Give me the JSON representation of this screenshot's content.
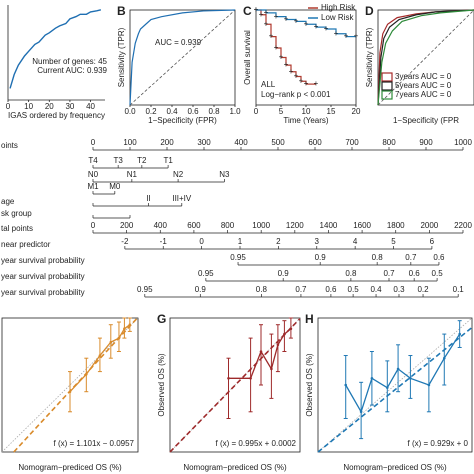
{
  "chart_data": [
    {
      "type": "line",
      "xlabel": "IGAS ordered by frequency",
      "x": [
        1,
        3,
        5,
        8,
        10,
        13,
        15,
        18,
        20,
        23,
        25,
        28,
        30,
        33,
        35,
        38,
        40,
        43,
        45
      ],
      "values": [
        0.6,
        0.66,
        0.7,
        0.74,
        0.76,
        0.79,
        0.8,
        0.83,
        0.84,
        0.86,
        0.87,
        0.88,
        0.9,
        0.91,
        0.92,
        0.92,
        0.93,
        0.935,
        0.939
      ],
      "color": "#1f6fb2",
      "xlim": [
        0,
        47
      ],
      "ylim": [
        0.55,
        0.96
      ],
      "xticks": [
        0,
        10,
        20,
        30,
        40
      ],
      "annotations": [
        "Number of genes: 45",
        "Current AUC: 0.939"
      ],
      "annotation_color": "#b03a2e"
    },
    {
      "type": "roc",
      "label": "B",
      "xlabel": "1−Specificity (FPR)",
      "ylabel": "Sensitivity (TPR)",
      "x": [
        0,
        0.02,
        0.05,
        0.08,
        0.1,
        0.15,
        0.2,
        0.3,
        0.5,
        0.7,
        1
      ],
      "values": [
        0,
        0.45,
        0.65,
        0.75,
        0.8,
        0.85,
        0.9,
        0.93,
        0.97,
        0.99,
        1
      ],
      "color": "#1f6fb2",
      "xlim": [
        0,
        1
      ],
      "ylim": [
        0,
        1
      ],
      "xticks": [
        {
          "value": 0,
          "label": "0.0"
        },
        0.2,
        0.4,
        0.6,
        0.8,
        {
          "value": 1,
          "label": "1.0"
        }
      ],
      "annotations": [
        "AUC = 0.939"
      ]
    },
    {
      "type": "km",
      "label": "C",
      "xlabel": "Time (Years)",
      "ylabel": "Overall survival",
      "xlim": [
        0,
        20
      ],
      "ylim": [
        0,
        1
      ],
      "xticks": [
        0,
        5,
        10,
        15,
        20
      ],
      "series": [
        {
          "name": "High Risk",
          "color": "#b03a2e",
          "x": [
            0,
            1,
            2,
            3,
            4,
            5,
            6,
            7,
            8,
            9,
            10,
            12
          ],
          "values": [
            1,
            0.95,
            0.85,
            0.72,
            0.6,
            0.5,
            0.42,
            0.35,
            0.3,
            0.25,
            0.22,
            0.22
          ]
        },
        {
          "name": "Low Risk",
          "color": "#1f78b4",
          "x": [
            0,
            2,
            4,
            6,
            8,
            10,
            12,
            14,
            16,
            18,
            20
          ],
          "values": [
            1,
            0.97,
            0.93,
            0.9,
            0.88,
            0.85,
            0.82,
            0.8,
            0.75,
            0.72,
            0.72
          ]
        }
      ],
      "annotations": [
        "ALL",
        "Log−rank p < 0.001"
      ]
    },
    {
      "type": "roc",
      "label": "D",
      "xlabel": "1−Specificity (FPR",
      "ylabel": "Sensitivity (TPR)",
      "xlim": [
        0,
        1
      ],
      "ylim": [
        0,
        1
      ],
      "series": [
        {
          "name": "3years  AUC = 0",
          "color": "#a52a2a",
          "x": [
            0,
            0.02,
            0.05,
            0.1,
            0.2,
            0.4,
            0.6,
            1
          ],
          "values": [
            0,
            0.55,
            0.75,
            0.85,
            0.92,
            0.96,
            0.98,
            1
          ]
        },
        {
          "name": "5years  AUC = 0",
          "color": "#222222",
          "x": [
            0,
            0.03,
            0.06,
            0.12,
            0.22,
            0.4,
            0.6,
            1
          ],
          "values": [
            0,
            0.5,
            0.7,
            0.82,
            0.9,
            0.95,
            0.98,
            1
          ]
        },
        {
          "name": "7years  AUC = 0",
          "color": "#2e8b3a",
          "x": [
            0,
            0.04,
            0.08,
            0.15,
            0.25,
            0.45,
            0.65,
            1
          ],
          "values": [
            0,
            0.45,
            0.65,
            0.78,
            0.88,
            0.94,
            0.97,
            1
          ]
        }
      ]
    },
    {
      "type": "nomogram",
      "rows": [
        {
          "label": "oints",
          "lim": [
            0,
            1000
          ],
          "ticks": [
            0,
            100,
            200,
            300,
            400,
            500,
            600,
            700,
            800,
            900,
            1000
          ]
        },
        {
          "label": null,
          "ticks": [
            "T4",
            "T3",
            "T2",
            "T1"
          ],
          "at": [
            0,
            68,
            132,
            203
          ]
        },
        {
          "label": null,
          "ticks": [
            "N0",
            "N1",
            "N2",
            "N3"
          ],
          "at": [
            0,
            105,
            230,
            355
          ]
        },
        {
          "label": null,
          "ticks": [
            "M1",
            "M0"
          ],
          "at": [
            0,
            59
          ]
        },
        {
          "label": "age",
          "ticks": [
            null,
            "II",
            "III+IV"
          ],
          "at": [
            0,
            150,
            240
          ]
        },
        {
          "label": "sk group",
          "ticks": [
            null,
            null
          ],
          "at": [
            0,
            100
          ]
        },
        {
          "label": "tal points",
          "lim": [
            0,
            2200
          ],
          "ticks": [
            0,
            200,
            400,
            600,
            800,
            1000,
            1200,
            1400,
            1600,
            1800,
            2000,
            2200
          ]
        },
        {
          "label": "near predictor",
          "lim": [
            -2.83,
            6.81
          ],
          "ticks": [
            -2,
            -1,
            0,
            1,
            2,
            3,
            4,
            5,
            6
          ]
        },
        {
          "label": "year survival probability",
          "ticks": [
            0.95,
            0.9,
            0.8,
            0.7,
            0.6
          ],
          "at": [
            392,
            614,
            768,
            859,
            935
          ]
        },
        {
          "label": "year survival probability",
          "ticks": [
            0.95,
            0.9,
            0.8,
            0.7,
            0.6,
            0.5
          ],
          "at": [
            305,
            514,
            697,
            800,
            868,
            930
          ]
        },
        {
          "label": "year survival probability",
          "ticks": [
            0.95,
            0.9,
            0.8,
            0.7,
            0.6,
            0.5,
            0.4,
            0.3,
            0.2,
            0.1
          ],
          "at": [
            140,
            290,
            455,
            562,
            643,
            703,
            765,
            827,
            892,
            987
          ]
        }
      ]
    },
    {
      "type": "calibration",
      "xlabel": "Nomogram−prediced OS (%)",
      "color": "#d98b2b",
      "xlim": [
        0,
        1
      ],
      "ylim": [
        0,
        1
      ],
      "x": [
        0.5,
        0.62,
        0.72,
        0.8,
        0.86,
        0.9,
        0.94
      ],
      "values": [
        0.45,
        0.58,
        0.72,
        0.82,
        0.85,
        0.92,
        0.95
      ],
      "lower": [
        0.3,
        0.45,
        0.6,
        0.7,
        0.75,
        0.85,
        0.9
      ],
      "upper": [
        0.6,
        0.7,
        0.85,
        0.95,
        0.97,
        1,
        1
      ],
      "fit": {
        "slope": 1.101,
        "intercept": -0.0957
      },
      "equation": "f (x) = 1.101x − 0.0957"
    },
    {
      "type": "calibration",
      "label": "G",
      "xlabel": "Nomogram−prediced OS (%)",
      "ylabel": "Observed OS (%)",
      "color": "#9e2a2b",
      "xlim": [
        0,
        1
      ],
      "ylim": [
        0,
        1
      ],
      "x": [
        0.45,
        0.62,
        0.7,
        0.78,
        0.83,
        0.88,
        0.93
      ],
      "values": [
        0.55,
        0.55,
        0.75,
        0.62,
        0.8,
        0.88,
        0.92
      ],
      "lower": [
        0.25,
        0.3,
        0.5,
        0.4,
        0.6,
        0.75,
        0.85
      ],
      "upper": [
        0.7,
        0.85,
        0.95,
        0.88,
        0.95,
        0.98,
        1
      ],
      "fit": {
        "slope": 0.995,
        "intercept": 0.0002
      },
      "equation": "f (x) = 0.995x + 0.0002"
    },
    {
      "type": "calibration",
      "label": "H",
      "xlabel": "Nomogram−prediced OS (%)",
      "ylabel": "Observed OS (%)",
      "color": "#1f78b4",
      "xlim": [
        0,
        1
      ],
      "ylim": [
        0,
        1
      ],
      "x": [
        0.18,
        0.28,
        0.35,
        0.45,
        0.52,
        0.6,
        0.72,
        0.82,
        0.92
      ],
      "values": [
        0.5,
        0.3,
        0.55,
        0.48,
        0.62,
        0.55,
        0.5,
        0.7,
        0.88
      ],
      "lower": [
        0.25,
        0.1,
        0.35,
        0.3,
        0.45,
        0.4,
        0.3,
        0.5,
        0.78
      ],
      "upper": [
        0.72,
        0.52,
        0.75,
        0.68,
        0.8,
        0.72,
        0.7,
        0.88,
        0.98
      ],
      "fit": {
        "slope": 0.929,
        "intercept": 0
      },
      "equation": "f (x) = 0.929x + 0"
    }
  ]
}
